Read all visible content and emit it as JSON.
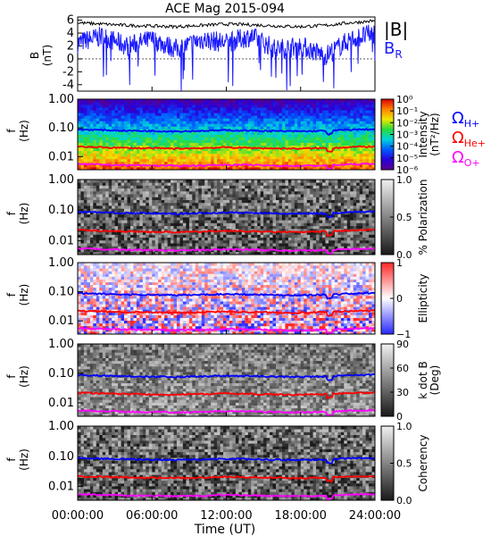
{
  "title": "ACE Mag 2015-094",
  "xlabel": "Time (UT)",
  "x_ticks": [
    "00:00:00",
    "06:00:00",
    "12:00:00",
    "18:00:00",
    "24:00:00"
  ],
  "colors": {
    "B": "#000000",
    "BR": "#1a1aff",
    "H": "#0000ff",
    "He": "#ff0000",
    "O": "#ff00ff"
  },
  "legend": {
    "B": "|B|",
    "BR": "B",
    "BR_sub": "R",
    "omega": "Ω",
    "H_sub": "H+",
    "He_sub": "He+",
    "O_sub": "O+"
  },
  "chart_data": [
    {
      "type": "line",
      "title": "ACE Mag 2015-094",
      "ylabel_top": "B",
      "ylabel_unit": "(nT)",
      "xlabel": "Time (UT)",
      "xlim_hours": [
        0,
        24
      ],
      "ylim": [
        -5,
        6.5
      ],
      "y_ticks": [
        "6",
        "4",
        "2",
        "0",
        "-2",
        "-4"
      ],
      "series": [
        {
          "name": "|B|",
          "x_hours": [
            0,
            2,
            4,
            6,
            8,
            10,
            12,
            14,
            16,
            18,
            20,
            22,
            24
          ],
          "values": [
            5.6,
            5.4,
            5.2,
            5.1,
            5.0,
            5.2,
            5.4,
            5.3,
            5.1,
            5.0,
            5.2,
            5.6,
            5.9
          ]
        },
        {
          "name": "B_R",
          "x_hours": [
            0,
            2,
            4,
            6,
            8,
            10,
            12,
            14,
            16,
            18,
            20,
            22,
            24
          ],
          "values": [
            2.5,
            3.5,
            2.0,
            3.0,
            1.5,
            3.0,
            2.5,
            3.5,
            1.5,
            2.0,
            0.5,
            3.0,
            4.0
          ]
        }
      ]
    },
    {
      "type": "heatmap",
      "panel": "Intensity",
      "ylabel": "f",
      "ylabel_unit": "(Hz)",
      "y_ticks": [
        "1.00",
        "0.10",
        "0.01"
      ],
      "ylim_hz": [
        0.0035,
        1.0
      ],
      "yscale": "log",
      "colorbar_label": "Intensity",
      "colorbar_unit": "(nT²/Hz)",
      "colorbar_ticks": [
        "10⁰",
        "10⁻¹",
        "10⁻²",
        "10⁻³",
        "10⁻⁴",
        "10⁻⁵",
        "10⁻⁶"
      ],
      "colorbar_range": [
        -6,
        0
      ],
      "colormap": "rainbow"
    },
    {
      "type": "heatmap",
      "panel": "% Polarization",
      "ylabel": "f",
      "ylabel_unit": "(Hz)",
      "y_ticks": [
        "1.00",
        "0.10",
        "0.01"
      ],
      "colorbar_label": "% Polarization",
      "colorbar_ticks": [
        "1.0",
        "0.5",
        "0.0"
      ],
      "colorbar_range": [
        0,
        1
      ],
      "colormap": "gray"
    },
    {
      "type": "heatmap",
      "panel": "Ellipticity",
      "ylabel": "f",
      "ylabel_unit": "(Hz)",
      "y_ticks": [
        "1.00",
        "0.10",
        "0.01"
      ],
      "colorbar_label": "Ellipticity",
      "colorbar_ticks": [
        "1",
        "0",
        "−1"
      ],
      "colorbar_range": [
        -1,
        1
      ],
      "colormap": "blue-white-red"
    },
    {
      "type": "heatmap",
      "panel": "k dot B",
      "ylabel": "f",
      "ylabel_unit": "(Hz)",
      "y_ticks": [
        "1.00",
        "0.10",
        "0.01"
      ],
      "colorbar_label": "k dot B",
      "colorbar_unit": "(Deg)",
      "colorbar_ticks": [
        "90",
        "60",
        "30",
        "0"
      ],
      "colorbar_range": [
        0,
        90
      ],
      "colormap": "gray"
    },
    {
      "type": "heatmap",
      "panel": "Coherency",
      "ylabel": "f",
      "ylabel_unit": "(Hz)",
      "y_ticks": [
        "1.00",
        "0.10",
        "0.01"
      ],
      "colorbar_label": "Coherency",
      "colorbar_ticks": [
        "1.0",
        "0.5",
        "0.0"
      ],
      "colorbar_range": [
        0,
        1
      ],
      "colormap": "gray"
    },
    {
      "type": "line",
      "panel": "gyrofrequencies (overlaid on each spectral panel)",
      "x_hours": [
        0,
        2,
        4,
        6,
        8,
        10,
        12,
        14,
        16,
        18,
        20,
        22,
        24
      ],
      "series": [
        {
          "name": "Ω H+",
          "values_hz": [
            0.088,
            0.084,
            0.08,
            0.078,
            0.076,
            0.079,
            0.083,
            0.081,
            0.077,
            0.076,
            0.079,
            0.086,
            0.09
          ]
        },
        {
          "name": "Ω He+",
          "values_hz": [
            0.022,
            0.021,
            0.02,
            0.0195,
            0.019,
            0.0198,
            0.021,
            0.02,
            0.0193,
            0.019,
            0.0198,
            0.0215,
            0.0225
          ]
        },
        {
          "name": "Ω O+",
          "values_hz": [
            0.0055,
            0.0053,
            0.005,
            0.0049,
            0.0048,
            0.0049,
            0.0052,
            0.0051,
            0.0048,
            0.0048,
            0.0049,
            0.0054,
            0.0056
          ]
        }
      ]
    }
  ]
}
